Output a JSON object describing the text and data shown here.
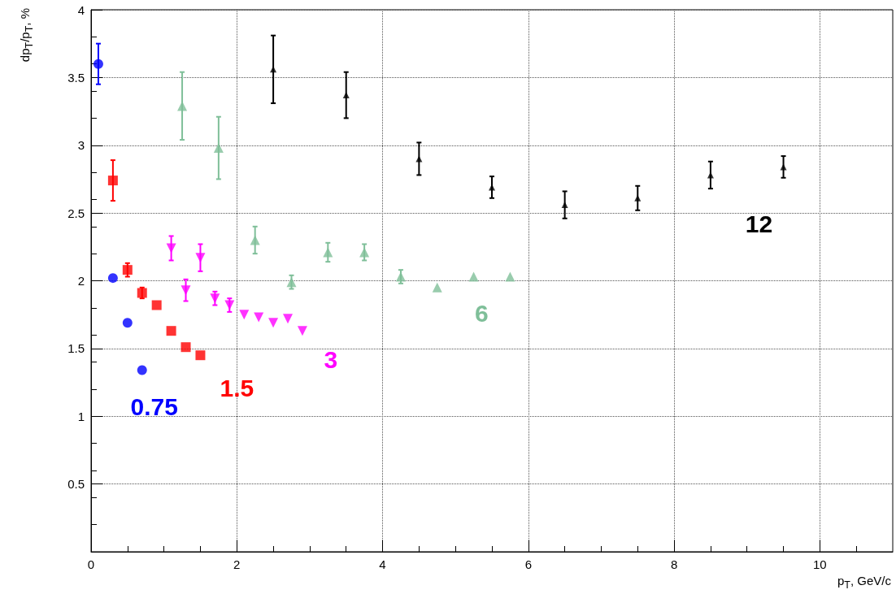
{
  "chart_data": {
    "type": "scatter",
    "xlabel": "p$_{T}$, GeV/c",
    "ylabel": "dp$_{T}$/p$_{T}$, %",
    "xlim": [
      0,
      11
    ],
    "xticks": [
      0,
      2,
      4,
      6,
      8,
      10
    ],
    "ylim": [
      0,
      4
    ],
    "yticks": [
      0.5,
      1,
      1.5,
      2,
      2.5,
      3,
      3.5,
      4
    ],
    "grid": true,
    "legend": false,
    "series": [
      {
        "name": "0.75",
        "color": "#0000ff",
        "marker": "circle",
        "x": [
          0.1,
          0.3,
          0.5,
          0.7
        ],
        "values": [
          3.6,
          2.02,
          1.69,
          1.34
        ],
        "errors": [
          0.15,
          null,
          null,
          null
        ]
      },
      {
        "name": "1.5",
        "color": "#ff0000",
        "marker": "square",
        "x": [
          0.3,
          0.5,
          0.7,
          0.9,
          1.1,
          1.3,
          1.5
        ],
        "values": [
          2.74,
          2.08,
          1.91,
          1.82,
          1.63,
          1.51,
          1.45
        ],
        "errors": [
          0.15,
          0.05,
          0.04,
          null,
          null,
          null,
          null
        ]
      },
      {
        "name": "3",
        "color": "#ff00ff",
        "marker": "triangle-down",
        "x": [
          1.1,
          1.3,
          1.5,
          1.7,
          1.9,
          2.1,
          2.3,
          2.5,
          2.7,
          2.9
        ],
        "values": [
          2.24,
          1.93,
          2.17,
          1.87,
          1.82,
          1.75,
          1.73,
          1.69,
          1.72,
          1.63
        ],
        "errors": [
          0.09,
          0.08,
          0.1,
          0.05,
          0.05,
          null,
          null,
          null,
          null,
          null
        ]
      },
      {
        "name": "6",
        "color": "#7fbf99",
        "marker": "triangle",
        "x": [
          1.25,
          1.75,
          2.25,
          2.75,
          3.25,
          3.75,
          4.25,
          4.75,
          5.25,
          5.75
        ],
        "values": [
          3.29,
          2.98,
          2.3,
          1.99,
          2.21,
          2.21,
          2.03,
          1.95,
          2.03,
          2.03
        ],
        "errors": [
          0.25,
          0.23,
          0.1,
          0.05,
          0.07,
          0.06,
          0.05,
          null,
          null,
          null
        ]
      },
      {
        "name": "12",
        "color": "#000000",
        "marker": "triangle",
        "x": [
          2.5,
          3.5,
          4.5,
          5.5,
          6.5,
          7.5,
          8.5,
          9.5
        ],
        "values": [
          3.56,
          3.37,
          2.9,
          2.69,
          2.56,
          2.61,
          2.78,
          2.84
        ],
        "errors": [
          0.25,
          0.17,
          0.12,
          0.08,
          0.1,
          0.09,
          0.1,
          0.08
        ]
      }
    ]
  }
}
